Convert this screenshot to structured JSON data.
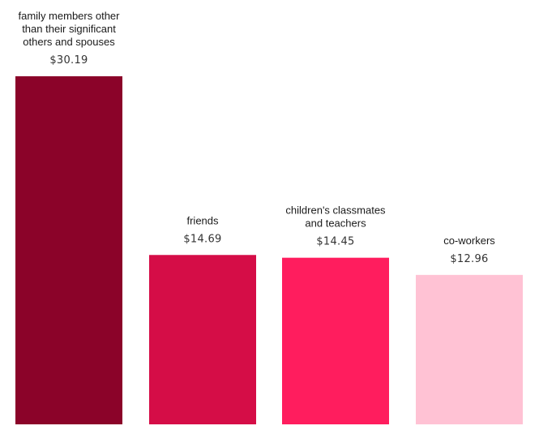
{
  "chart_data": {
    "type": "bar",
    "categories": [
      [
        "family members other",
        "than their significant",
        "others and spouses"
      ],
      [
        "friends"
      ],
      [
        "children's classmates",
        "and teachers"
      ],
      [
        "co-workers"
      ]
    ],
    "values": [
      30.19,
      14.69,
      14.45,
      12.96
    ],
    "value_labels": [
      "$30.19",
      "$14.69",
      "$14.45",
      "$12.96"
    ],
    "colors": [
      "#8B0329",
      "#D50D47",
      "#FF1D5E",
      "#FFC2D4"
    ],
    "ylim": [
      0,
      30.19
    ],
    "grid": false,
    "legend": "none",
    "title": "",
    "xlabel": "",
    "ylabel": ""
  }
}
